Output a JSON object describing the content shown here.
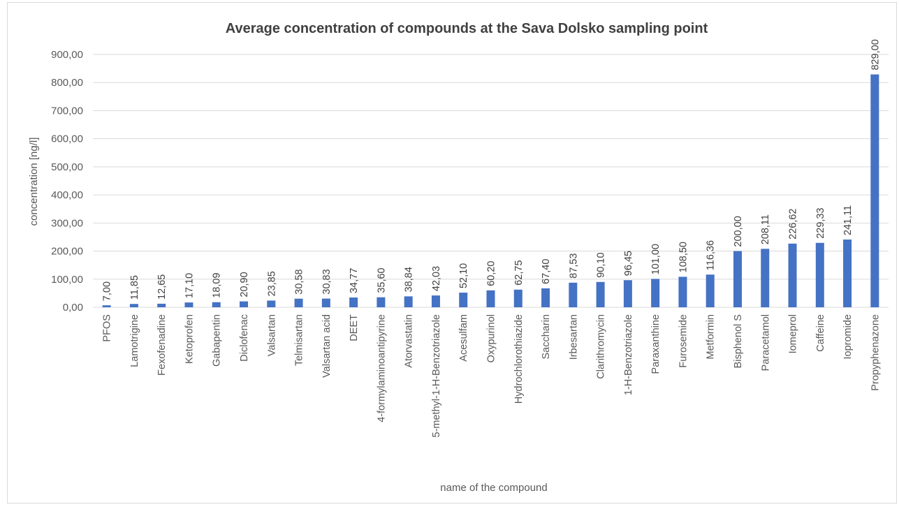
{
  "chart_data": {
    "type": "bar",
    "title": "Average concentration of compounds at the Sava Dolsko sampling point",
    "xlabel": "name of the compound",
    "ylabel": "concentration [ng/l]",
    "ylim": [
      0,
      900
    ],
    "yticks": [
      "0,00",
      "100,00",
      "200,00",
      "300,00",
      "400,00",
      "500,00",
      "600,00",
      "700,00",
      "800,00",
      "900,00"
    ],
    "grid": true,
    "categories": [
      "PFOS",
      "Lamotrigine",
      "Fexofenadine",
      "Ketoprofen",
      "Gabapentin",
      "Diclofenac",
      "Valsartan",
      "Telmisartan",
      "Valsartan acid",
      "DEET",
      "4-formylaminoantipyrine",
      "Atorvastatin",
      "5-methyl-1-H-Benzotriazole",
      "Acesulfam",
      "Oxypurinol",
      "Hydrochlorothiazide",
      "Saccharin",
      "Irbesartan",
      "Clarithromycin",
      "1-H-Benzotriazole",
      "Paraxanthine",
      "Furosemide",
      "Metformin",
      "Bisphenol S",
      "Paracetamol",
      "Iomeprol",
      "Caffeine",
      "Iopromide",
      "Propyphenazone"
    ],
    "values": [
      7.0,
      11.85,
      12.65,
      17.1,
      18.09,
      20.9,
      23.85,
      30.58,
      30.83,
      34.77,
      35.6,
      38.84,
      42.03,
      52.1,
      60.2,
      62.75,
      67.4,
      87.53,
      90.1,
      96.45,
      101.0,
      108.5,
      116.36,
      200.0,
      208.11,
      226.62,
      229.33,
      241.11,
      829.0
    ],
    "data_labels": [
      "7,00",
      "11,85",
      "12,65",
      "17,10",
      "18,09",
      "20,90",
      "23,85",
      "30,58",
      "30,83",
      "34,77",
      "35,60",
      "38,84",
      "42,03",
      "52,10",
      "60,20",
      "62,75",
      "67,40",
      "87,53",
      "90,10",
      "96,45",
      "101,00",
      "108,50",
      "116,36",
      "200,00",
      "208,11",
      "226,62",
      "229,33",
      "241,11",
      "829,00"
    ],
    "bar_color": "#4472c4",
    "grid_color": "#d9d9d9"
  }
}
